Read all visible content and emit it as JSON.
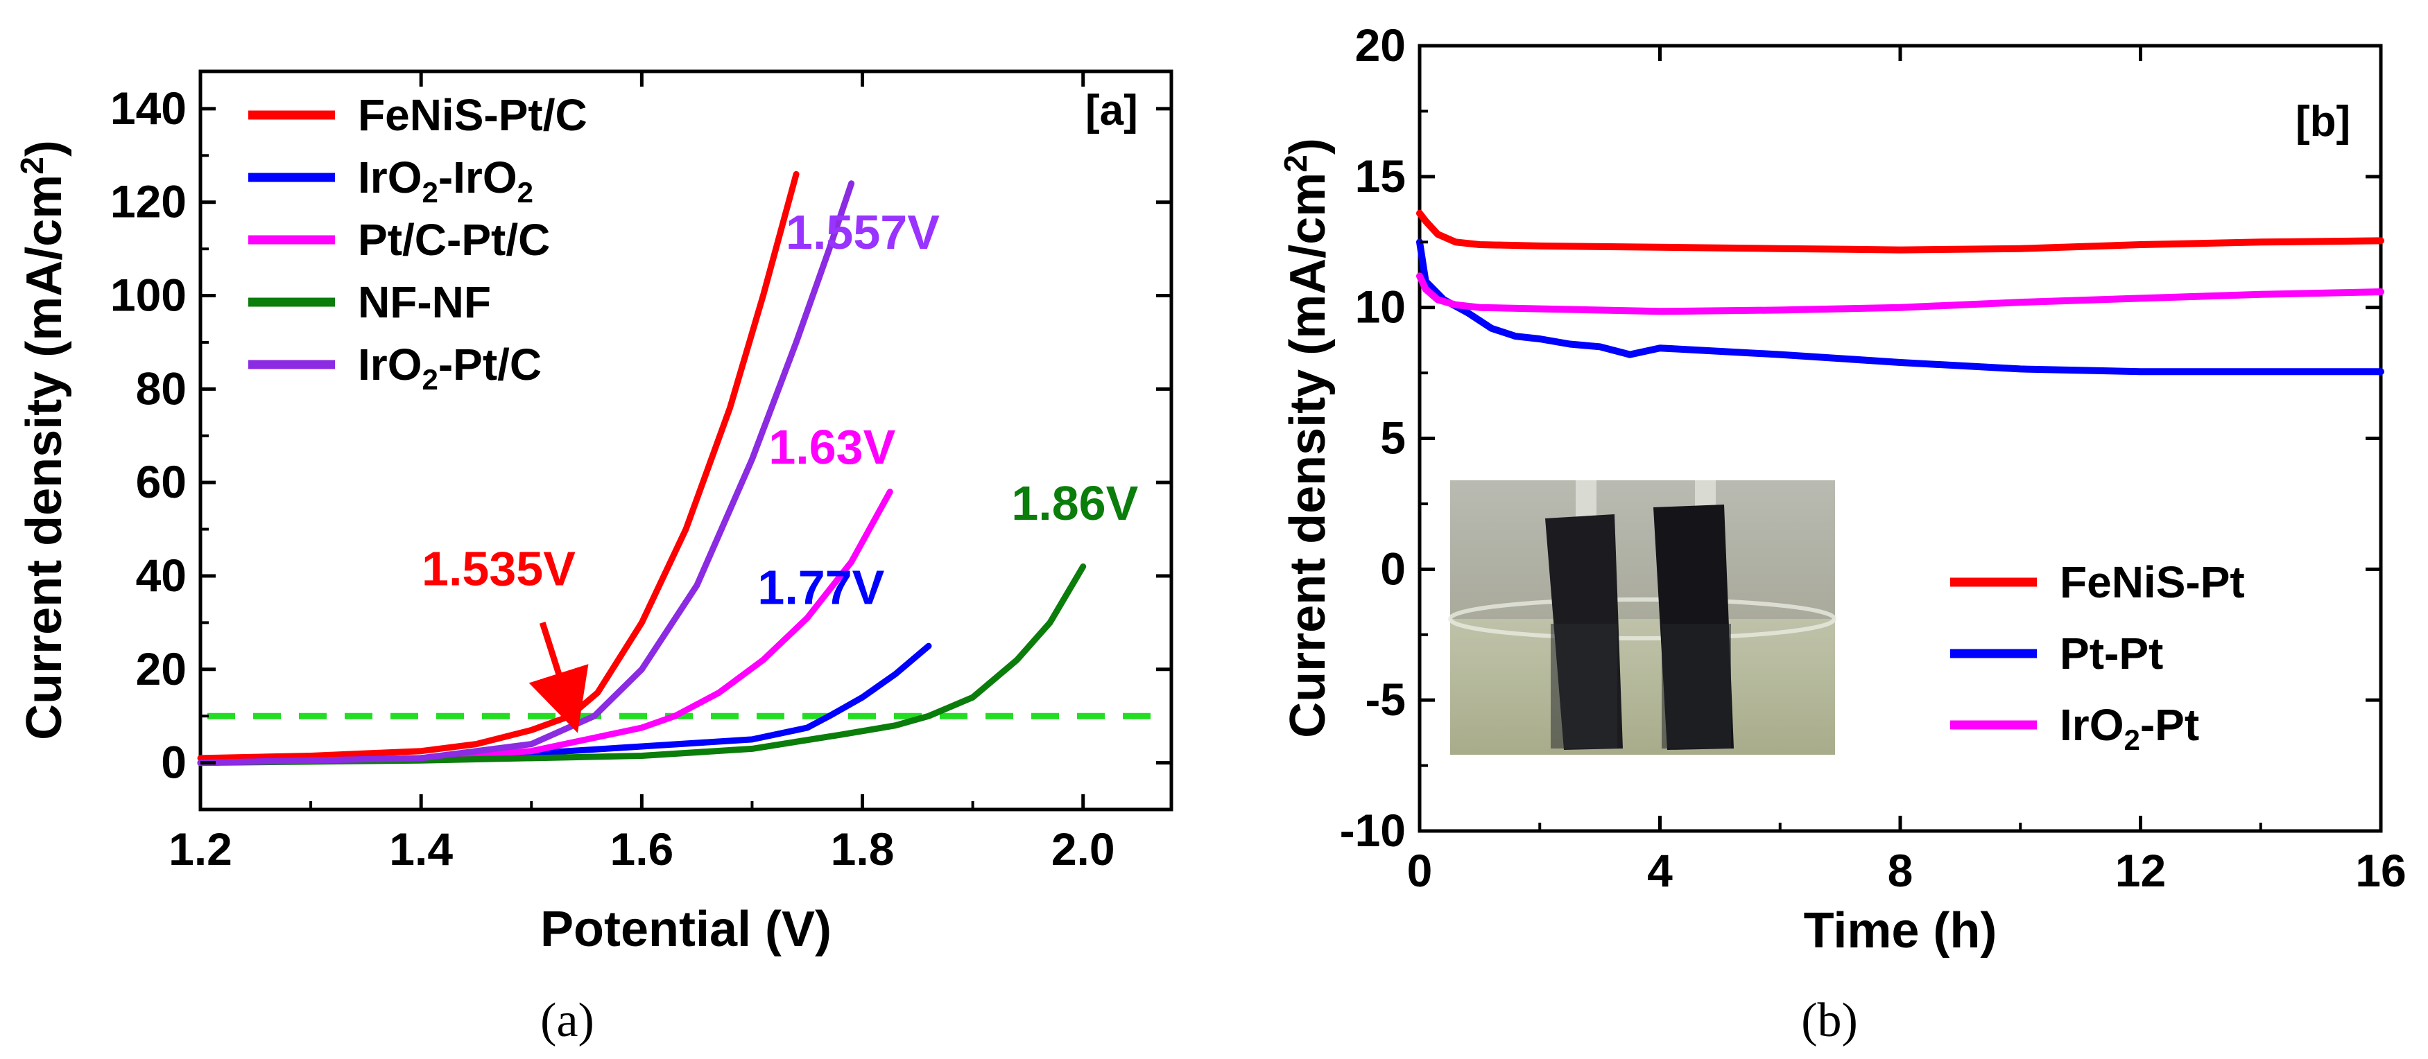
{
  "chart_data": [
    {
      "type": "line",
      "panel_label": "[a]",
      "caption": "(a)",
      "xlabel": "Potential (V)",
      "ylabel": "Current density (mA/cm",
      "ylabel_sup": "2",
      "ylabel_end": ")",
      "xlim": [
        1.2,
        2.08
      ],
      "ylim": [
        -10,
        148
      ],
      "xticks": [
        1.2,
        1.4,
        1.6,
        1.8,
        2.0
      ],
      "xtick_labels": [
        "1.2",
        "1.4",
        "1.6",
        "1.8",
        "2.0"
      ],
      "yticks": [
        0,
        20,
        40,
        60,
        80,
        100,
        120,
        140
      ],
      "ytick_labels": [
        "0",
        "20",
        "40",
        "60",
        "80",
        "100",
        "120",
        "140"
      ],
      "legend_position": "top-left",
      "reference_line": {
        "y": 10,
        "style": "dashed",
        "color": "#22dd22"
      },
      "series": [
        {
          "name": "FeNiS-Pt/C",
          "name_parts": [
            {
              "t": "FeNiS-Pt/C"
            }
          ],
          "color": "#ff0000",
          "x": [
            1.2,
            1.3,
            1.4,
            1.45,
            1.5,
            1.535,
            1.56,
            1.6,
            1.64,
            1.68,
            1.71,
            1.74
          ],
          "y": [
            1,
            1.5,
            2.5,
            4,
            7,
            10,
            15,
            30,
            50,
            76,
            100,
            126
          ]
        },
        {
          "name": "IrO2-IrO2",
          "name_parts": [
            {
              "t": "IrO"
            },
            {
              "t": "2",
              "sub": true
            },
            {
              "t": "-IrO"
            },
            {
              "t": "2",
              "sub": true
            }
          ],
          "color": "#0000ff",
          "x": [
            1.2,
            1.4,
            1.5,
            1.6,
            1.7,
            1.75,
            1.77,
            1.8,
            1.83,
            1.86
          ],
          "y": [
            0,
            1,
            2,
            3.5,
            5,
            7.5,
            10,
            14,
            19,
            25
          ]
        },
        {
          "name": "Pt/C-Pt/C",
          "name_parts": [
            {
              "t": "Pt/C-Pt/C"
            }
          ],
          "color": "#ff00ff",
          "x": [
            1.2,
            1.4,
            1.5,
            1.55,
            1.6,
            1.63,
            1.67,
            1.71,
            1.75,
            1.79,
            1.825
          ],
          "y": [
            0,
            1,
            2.5,
            5,
            7.5,
            10,
            15,
            22,
            31,
            43,
            58
          ]
        },
        {
          "name": "NF-NF",
          "name_parts": [
            {
              "t": "NF-NF"
            }
          ],
          "color": "#0a7d0a",
          "x": [
            1.2,
            1.4,
            1.6,
            1.7,
            1.78,
            1.83,
            1.86,
            1.9,
            1.94,
            1.97,
            2.0
          ],
          "y": [
            0,
            0.5,
            1.5,
            3,
            6,
            8,
            10,
            14,
            22,
            30,
            42
          ]
        },
        {
          "name": "IrO2-Pt/C",
          "name_parts": [
            {
              "t": "IrO"
            },
            {
              "t": "2",
              "sub": true
            },
            {
              "t": "-Pt/C"
            }
          ],
          "color": "#8b2be2",
          "x": [
            1.2,
            1.4,
            1.5,
            1.557,
            1.6,
            1.65,
            1.7,
            1.74,
            1.77,
            1.79
          ],
          "y": [
            0,
            1,
            4,
            10,
            20,
            38,
            65,
            90,
            110,
            124
          ]
        }
      ],
      "annotations": [
        {
          "text": "1.535V",
          "color": "#ff0000",
          "x": 1.54,
          "y": 38,
          "arrow_to": [
            1.535,
            10
          ],
          "arrow_from": [
            1.51,
            30
          ]
        },
        {
          "text": "1.557V",
          "color": "#9933ff",
          "x": 1.87,
          "y": 110
        },
        {
          "text": "1.63V",
          "color": "#ff00ff",
          "x": 1.83,
          "y": 64
        },
        {
          "text": "1.77V",
          "color": "#0000ff",
          "x": 1.82,
          "y": 34
        },
        {
          "text": "1.86V",
          "color": "#0a7d0a",
          "x": 2.05,
          "y": 52
        }
      ]
    },
    {
      "type": "line",
      "panel_label": "[b]",
      "caption": "(b)",
      "xlabel": "Time (h)",
      "ylabel": "Current density (mA/cm",
      "ylabel_sup": "2",
      "ylabel_end": ")",
      "xlim": [
        0,
        16
      ],
      "ylim": [
        -10,
        20
      ],
      "xticks": [
        0,
        4,
        8,
        12,
        16
      ],
      "xtick_labels": [
        "0",
        "4",
        "8",
        "12",
        "16"
      ],
      "yticks": [
        -10,
        -5,
        0,
        5,
        10,
        15,
        20
      ],
      "ytick_labels": [
        "-10",
        "-5",
        "0",
        "5",
        "10",
        "15",
        "20"
      ],
      "legend_position": "bottom-right",
      "inset": "photo of two electrodes in electrolyte beaker",
      "series": [
        {
          "name": "FeNiS-Pt",
          "name_parts": [
            {
              "t": "FeNiS-Pt"
            }
          ],
          "color": "#ff0000",
          "x": [
            0,
            0.1,
            0.3,
            0.6,
            1,
            2,
            4,
            6,
            8,
            10,
            12,
            14,
            16
          ],
          "y": [
            13.6,
            13.3,
            12.8,
            12.5,
            12.4,
            12.35,
            12.3,
            12.25,
            12.2,
            12.25,
            12.4,
            12.5,
            12.55
          ]
        },
        {
          "name": "Pt-Pt",
          "name_parts": [
            {
              "t": "Pt-Pt"
            }
          ],
          "color": "#0000ff",
          "x": [
            0,
            0.1,
            0.4,
            0.8,
            1.2,
            1.6,
            2.0,
            2.5,
            3.0,
            3.5,
            4,
            6,
            8,
            10,
            12,
            14,
            16
          ],
          "y": [
            12.5,
            11.0,
            10.3,
            9.8,
            9.2,
            8.9,
            8.8,
            8.6,
            8.5,
            8.2,
            8.45,
            8.2,
            7.9,
            7.65,
            7.55,
            7.55,
            7.55
          ]
        },
        {
          "name": "IrO2-Pt",
          "name_parts": [
            {
              "t": "IrO"
            },
            {
              "t": "2",
              "sub": true
            },
            {
              "t": "-Pt"
            }
          ],
          "color": "#ff00ff",
          "x": [
            0,
            0.1,
            0.3,
            0.6,
            1,
            2,
            4,
            6,
            8,
            10,
            12,
            14,
            16
          ],
          "y": [
            11.2,
            10.7,
            10.3,
            10.1,
            10.0,
            9.95,
            9.85,
            9.9,
            10.0,
            10.2,
            10.35,
            10.5,
            10.6
          ]
        }
      ]
    }
  ]
}
